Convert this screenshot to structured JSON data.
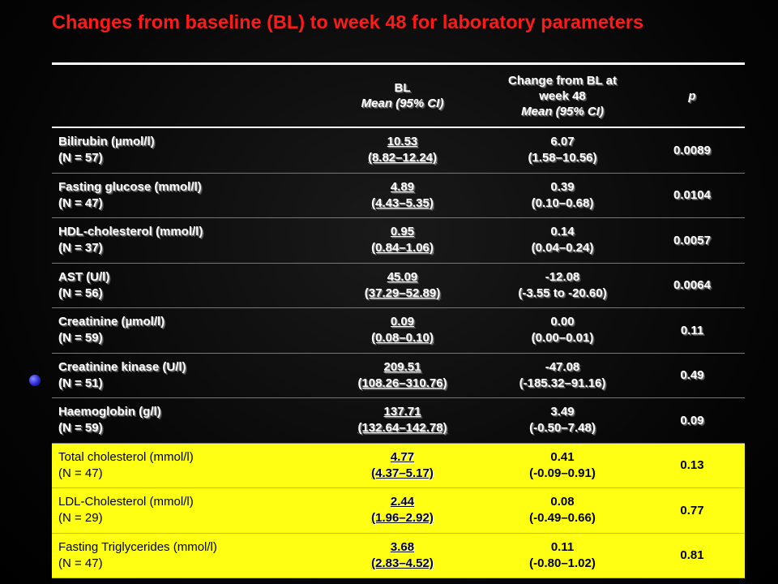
{
  "title": "Changes from baseline (BL) to week 48 for laboratory parameters",
  "colors": {
    "title": "#ff1a1a",
    "highlight": "#ffff14",
    "background": "#000000",
    "text": "#ffffff"
  },
  "table": {
    "header": {
      "param": "",
      "bl_line1": "BL",
      "bl_line2": "Mean (95% CI)",
      "chg_line1": "Change from BL at",
      "chg_line2": "week 48",
      "chg_line3": "Mean (95% CI)",
      "p": "p"
    },
    "rows": [
      {
        "name": "Bilirubin (µmol/l)",
        "n": "(N = 57)",
        "bl_mean": "10.53",
        "bl_ci": "(8.82–12.24)",
        "chg_mean": "6.07",
        "chg_ci": "(1.58–10.56)",
        "p": "0.0089",
        "highlighted": false
      },
      {
        "name": "Fasting glucose (mmol/l)",
        "n": "(N = 47)",
        "bl_mean": "4.89",
        "bl_ci": "(4.43–5.35)",
        "chg_mean": "0.39",
        "chg_ci": "(0.10–0.68)",
        "p": "0.0104",
        "highlighted": false
      },
      {
        "name": "HDL-cholesterol (mmol/l)",
        "n": "(N = 37)",
        "bl_mean": "0.95",
        "bl_ci": "(0.84–1.06)",
        "chg_mean": "0.14",
        "chg_ci": "(0.04–0.24)",
        "p": "0.0057",
        "highlighted": false
      },
      {
        "name": "AST (U/l)",
        "n": "(N = 56)",
        "bl_mean": "45.09",
        "bl_ci": "(37.29–52.89)",
        "chg_mean": "-12.08",
        "chg_ci": "(-3.55 to -20.60)",
        "p": "0.0064",
        "highlighted": false
      },
      {
        "name": "Creatinine (µmol/l)",
        "n": "(N = 59)",
        "bl_mean": "0.09",
        "bl_ci": "(0.08–0.10)",
        "chg_mean": "0.00",
        "chg_ci": "(0.00–0.01)",
        "p": "0.11",
        "highlighted": false
      },
      {
        "name": "Creatinine kinase (U/l)",
        "n": "(N = 51)",
        "bl_mean": "209.51",
        "bl_ci": "(108.26–310.76)",
        "chg_mean": "-47.08",
        "chg_ci": "(-185.32–91.16)",
        "p": "0.49",
        "highlighted": false
      },
      {
        "name": "Haemoglobin (g/l)",
        "n": "(N = 59)",
        "bl_mean": "137.71",
        "bl_ci": "(132.64–142.78)",
        "chg_mean": "3.49",
        "chg_ci": "(-0.50–7.48)",
        "p": "0.09",
        "highlighted": false
      },
      {
        "name": "Total cholesterol (mmol/l)",
        "n": "(N = 47)",
        "bl_mean": "4.77",
        "bl_ci": "(4.37–5.17)",
        "chg_mean": "0.41",
        "chg_ci": "(-0.09–0.91)",
        "p": "0.13",
        "highlighted": true
      },
      {
        "name": "LDL-Cholesterol (mmol/l)",
        "n": "(N = 29)",
        "bl_mean": "2.44",
        "bl_ci": "(1.96–2.92)",
        "chg_mean": "0.08",
        "chg_ci": "(-0.49–0.66)",
        "p": "0.77",
        "highlighted": true
      },
      {
        "name": "Fasting Triglycerides (mmol/l)",
        "n": "(N = 47)",
        "bl_mean": "3.68",
        "bl_ci": "(2.83–4.52)",
        "chg_mean": "0.11",
        "chg_ci": "(-0.80–1.02)",
        "p": "0.81",
        "highlighted": true
      }
    ]
  }
}
